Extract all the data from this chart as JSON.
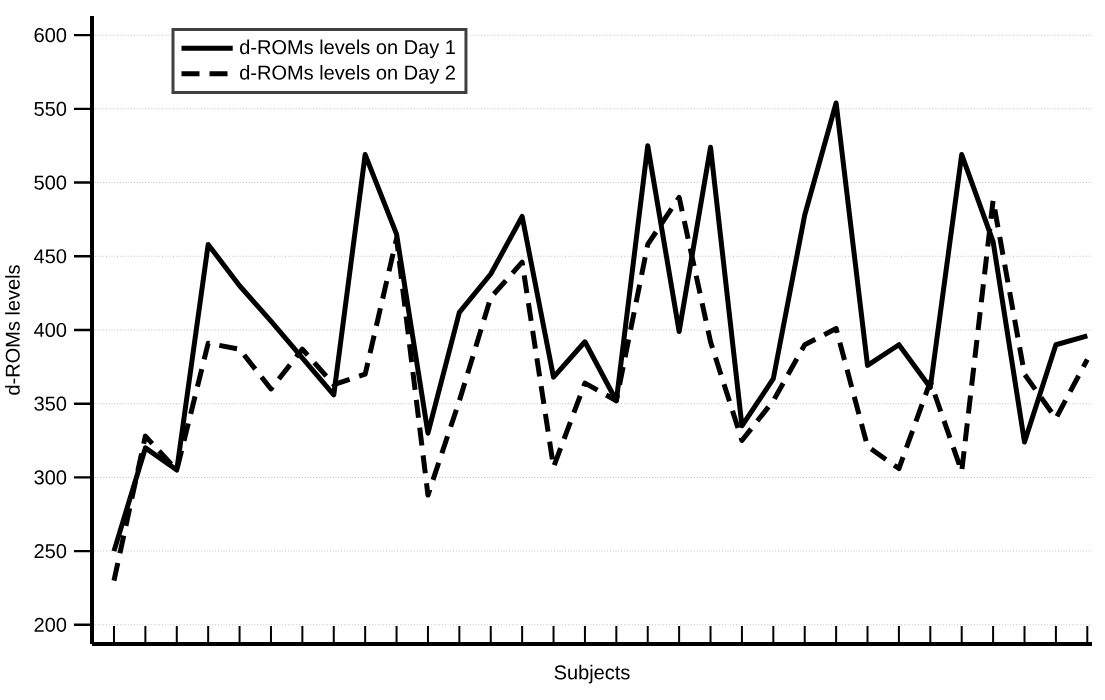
{
  "chart_data": {
    "type": "line",
    "xlabel": "Subjects",
    "ylabel": "d-ROMs levels",
    "categories": [
      null,
      null,
      null,
      null,
      null,
      null,
      null,
      null,
      null,
      null,
      null,
      null,
      null,
      null,
      null,
      null,
      null,
      null,
      null,
      null,
      null,
      null,
      null,
      null,
      null,
      null,
      null,
      null,
      null,
      null,
      null,
      null
    ],
    "series": [
      {
        "name": "d-ROMs levels on Day 1",
        "color": "#000000",
        "line_style": "solid",
        "values": [
          250,
          320,
          305,
          458,
          430,
          406,
          381,
          356,
          519,
          465,
          330,
          412,
          438,
          477,
          368,
          392,
          352,
          525,
          399,
          524,
          335,
          367,
          478,
          554,
          376,
          390,
          361,
          519,
          460,
          324,
          390,
          396
        ]
      },
      {
        "name": "d-ROMs levels on Day 2",
        "color": "#000000",
        "line_style": "dashed",
        "values": [
          230,
          328,
          305,
          391,
          387,
          360,
          387,
          363,
          370,
          462,
          288,
          352,
          422,
          446,
          307,
          364,
          352,
          458,
          490,
          392,
          325,
          352,
          390,
          401,
          321,
          306,
          365,
          304,
          488,
          370,
          340,
          380
        ]
      }
    ],
    "ylim": [
      187,
      613
    ],
    "yticks": [
      200,
      250,
      300,
      350,
      400,
      450,
      500,
      550,
      600
    ],
    "grid": "y",
    "legend": "top left",
    "marker": "none",
    "tick_labels": "y"
  }
}
